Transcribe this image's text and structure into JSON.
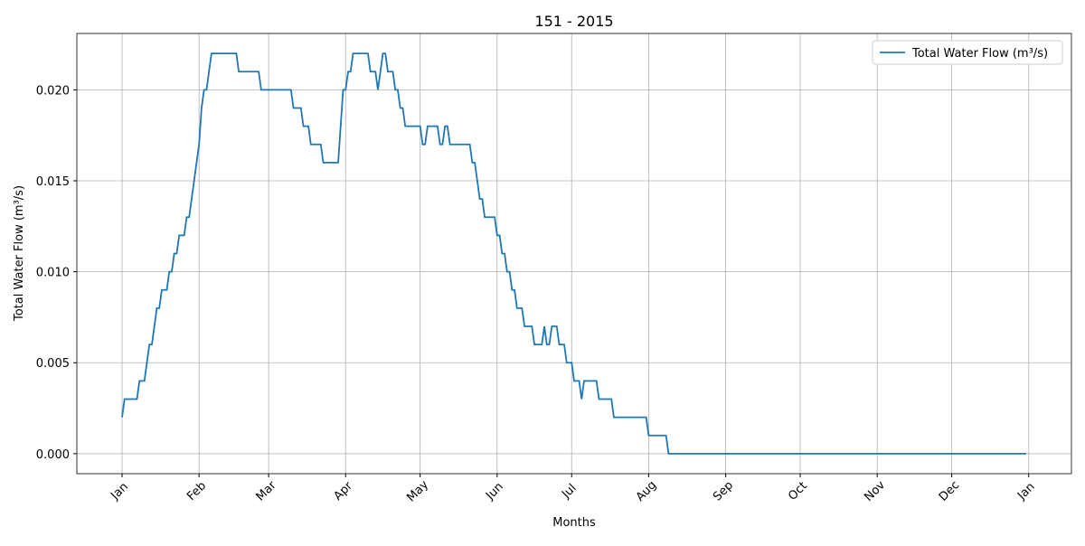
{
  "chart_data": {
    "type": "line",
    "title": "151 - 2015",
    "x_label": "Months",
    "y_label": "Total Water Flow (m³/s)",
    "x": [
      0,
      1,
      6,
      7,
      9,
      11,
      12,
      14,
      15,
      16,
      18,
      19,
      20,
      21,
      22,
      23,
      25,
      26,
      27,
      31,
      32,
      33,
      34,
      36,
      46,
      47,
      55,
      56,
      68,
      69,
      72,
      73,
      75,
      76,
      80,
      81,
      87,
      89,
      90,
      91,
      92,
      93,
      99,
      100,
      102,
      103,
      105,
      106,
      107,
      109,
      110,
      111,
      112,
      113,
      114,
      120,
      121,
      122,
      123,
      127,
      128,
      129,
      130,
      131,
      132,
      140,
      141,
      142,
      144,
      145,
      146,
      150,
      151,
      152,
      153,
      154,
      155,
      156,
      157,
      158,
      159,
      161,
      162,
      165,
      166,
      169,
      170,
      171,
      172,
      173,
      175,
      176,
      178,
      179,
      181,
      182,
      184,
      185,
      186,
      191,
      192,
      197,
      198,
      211,
      212,
      219,
      220,
      364
    ],
    "series": [
      {
        "name": "Total Water Flow (m³/s)",
        "color": "#1f77b4",
        "values": [
          0.002,
          0.003,
          0.003,
          0.004,
          0.004,
          0.006,
          0.006,
          0.008,
          0.008,
          0.009,
          0.009,
          0.01,
          0.01,
          0.011,
          0.011,
          0.012,
          0.012,
          0.013,
          0.013,
          0.017,
          0.019,
          0.02,
          0.02,
          0.022,
          0.022,
          0.021,
          0.021,
          0.02,
          0.02,
          0.019,
          0.019,
          0.018,
          0.018,
          0.017,
          0.017,
          0.016,
          0.016,
          0.02,
          0.02,
          0.021,
          0.021,
          0.022,
          0.022,
          0.021,
          0.021,
          0.02,
          0.022,
          0.022,
          0.021,
          0.021,
          0.02,
          0.02,
          0.019,
          0.019,
          0.018,
          0.018,
          0.017,
          0.017,
          0.018,
          0.018,
          0.017,
          0.017,
          0.018,
          0.018,
          0.017,
          0.017,
          0.016,
          0.016,
          0.014,
          0.014,
          0.013,
          0.013,
          0.012,
          0.012,
          0.011,
          0.011,
          0.01,
          0.01,
          0.009,
          0.009,
          0.008,
          0.008,
          0.007,
          0.007,
          0.006,
          0.006,
          0.007,
          0.006,
          0.006,
          0.007,
          0.007,
          0.006,
          0.006,
          0.005,
          0.005,
          0.004,
          0.004,
          0.003,
          0.004,
          0.004,
          0.003,
          0.003,
          0.002,
          0.002,
          0.001,
          0.001,
          0,
          0
        ]
      }
    ],
    "xlim": [
      -18.2,
      382.2
    ],
    "xticks": [
      {
        "value": 0,
        "label": "Jan"
      },
      {
        "value": 31,
        "label": "Feb"
      },
      {
        "value": 59,
        "label": "Mar"
      },
      {
        "value": 90,
        "label": "Apr"
      },
      {
        "value": 120,
        "label": "May"
      },
      {
        "value": 151,
        "label": "Jun"
      },
      {
        "value": 181,
        "label": "Jul"
      },
      {
        "value": 212,
        "label": "Aug"
      },
      {
        "value": 243,
        "label": "Sep"
      },
      {
        "value": 273,
        "label": "Oct"
      },
      {
        "value": 304,
        "label": "Nov"
      },
      {
        "value": 334,
        "label": "Dec"
      },
      {
        "value": 365,
        "label": "Jan"
      }
    ],
    "ylim": [
      -0.0011,
      0.0231
    ],
    "yticks": [
      {
        "value": 0,
        "label": "0.000"
      },
      {
        "value": 0.005,
        "label": "0.005"
      },
      {
        "value": 0.01,
        "label": "0.010"
      },
      {
        "value": 0.015,
        "label": "0.015"
      },
      {
        "value": 0.02,
        "label": "0.020"
      }
    ],
    "grid": true,
    "legend": "upper right"
  }
}
